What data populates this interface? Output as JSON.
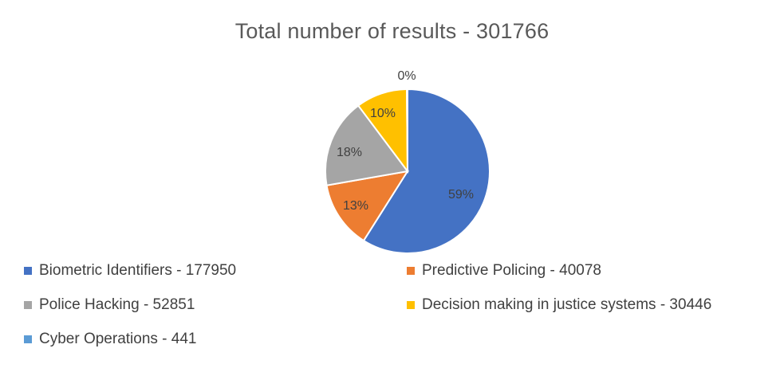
{
  "chart_data": {
    "type": "pie",
    "title": "Total number of results - 301766",
    "slices": [
      {
        "label": "Biometric Identifiers - 177950",
        "value": 177950,
        "percent_label": "59%",
        "color": "#4472C4"
      },
      {
        "label": "Predictive Policing - 40078",
        "value": 40078,
        "percent_label": "13%",
        "color": "#ED7D31"
      },
      {
        "label": "Police Hacking - 52851",
        "value": 52851,
        "percent_label": "18%",
        "color": "#A5A5A5"
      },
      {
        "label": "Decision making in justice systems - 30446",
        "value": 30446,
        "percent_label": "10%",
        "color": "#FFC000"
      },
      {
        "label": "Cyber Operations - 441",
        "value": 441,
        "percent_label": "0%",
        "color": "#5B9BD5"
      }
    ],
    "legend_position": "bottom"
  }
}
